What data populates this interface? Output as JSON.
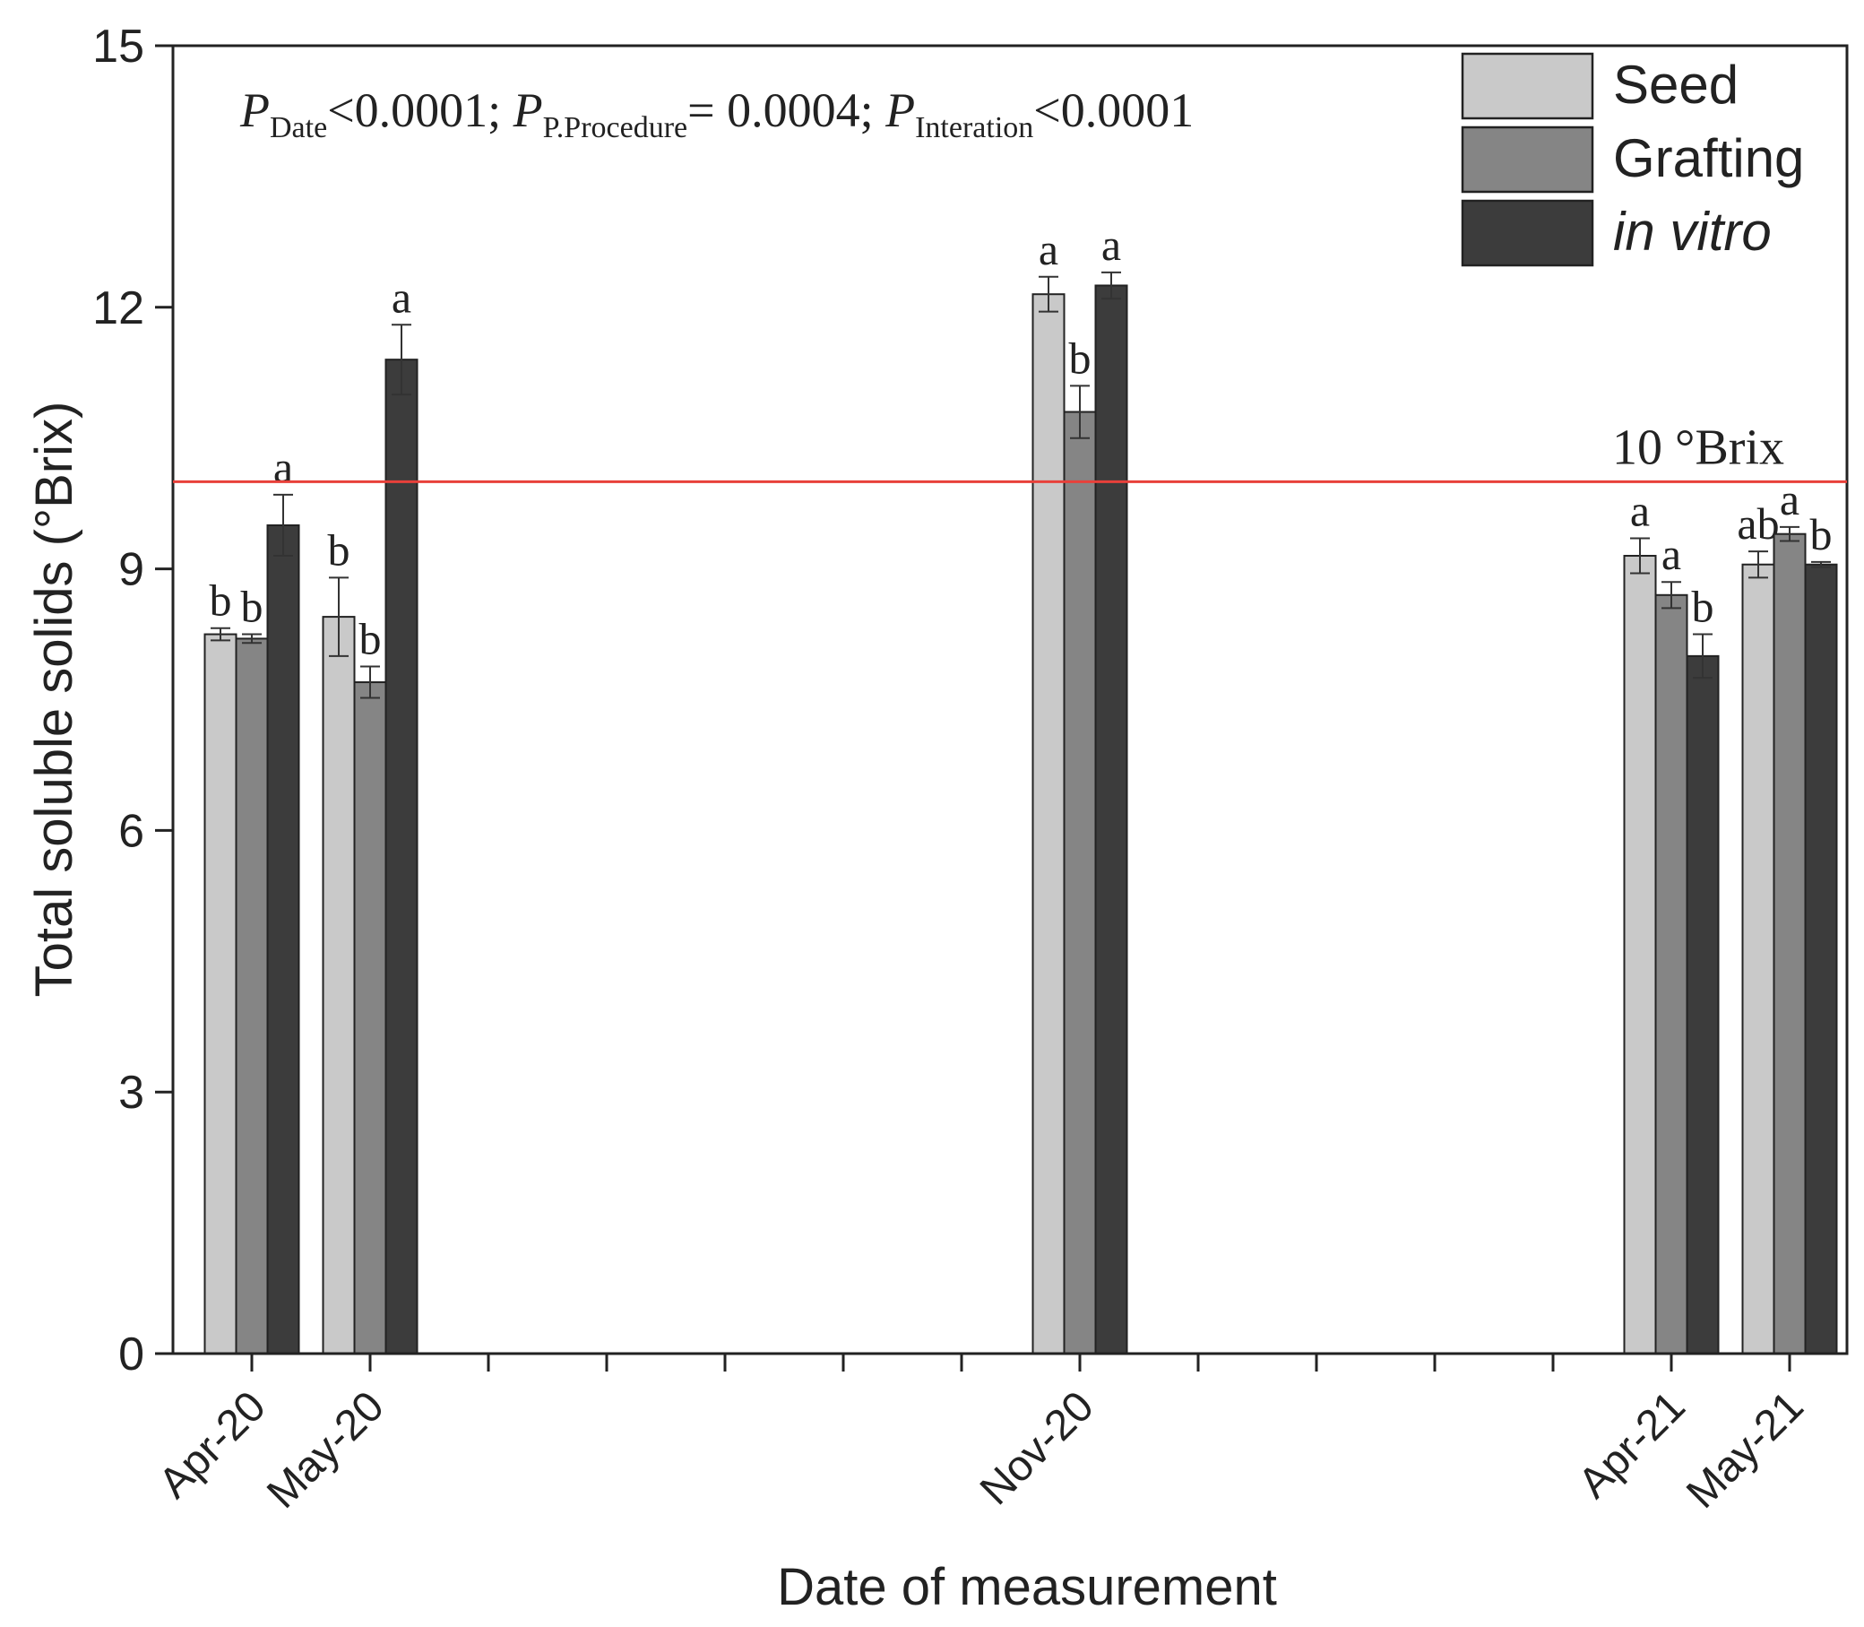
{
  "chart_data": {
    "type": "bar",
    "xlabel": "Date of measurement",
    "ylabel": "Total soluble solids (°Brix)",
    "ylim": [
      0,
      15
    ],
    "yticks": [
      0,
      3,
      6,
      9,
      12,
      15
    ],
    "x_tick_count": 14,
    "categories": [
      "Apr-20",
      "May-20",
      "Nov-20",
      "Apr-21",
      "May-21"
    ],
    "category_tick_index": [
      1,
      2,
      8,
      13,
      14
    ],
    "series": [
      {
        "name": "Seed",
        "color": "#c9c9c9",
        "values": [
          8.25,
          8.45,
          12.15,
          9.15,
          9.05
        ],
        "errors": [
          0.07,
          0.45,
          0.2,
          0.2,
          0.15
        ],
        "letters": [
          "b",
          "b",
          "a",
          "a",
          "ab"
        ]
      },
      {
        "name": "Grafting",
        "color": "#858585",
        "values": [
          8.2,
          7.7,
          10.8,
          8.7,
          9.4
        ],
        "errors": [
          0.05,
          0.18,
          0.3,
          0.15,
          0.08
        ],
        "letters": [
          "b",
          "b",
          "b",
          "a",
          "a"
        ]
      },
      {
        "name": "in vitro",
        "color": "#3c3c3c",
        "values": [
          9.5,
          11.4,
          12.25,
          8.0,
          9.05
        ],
        "errors": [
          0.35,
          0.4,
          0.15,
          0.25,
          0.03
        ],
        "letters": [
          "a",
          "a",
          "a",
          "b",
          "b"
        ]
      }
    ],
    "reference_line": {
      "value": 10,
      "label": "10 °Brix",
      "color": "#e8403a"
    },
    "stats_annotation": [
      {
        "symbol": "P",
        "subscript": "Date",
        "tail": "<0.0001; "
      },
      {
        "symbol": "P",
        "subscript": "P.Procedure",
        "tail": "= 0.0004; "
      },
      {
        "symbol": "P",
        "subscript": "Interation",
        "tail": "<0.0001"
      }
    ],
    "legend_position": "top-right"
  }
}
